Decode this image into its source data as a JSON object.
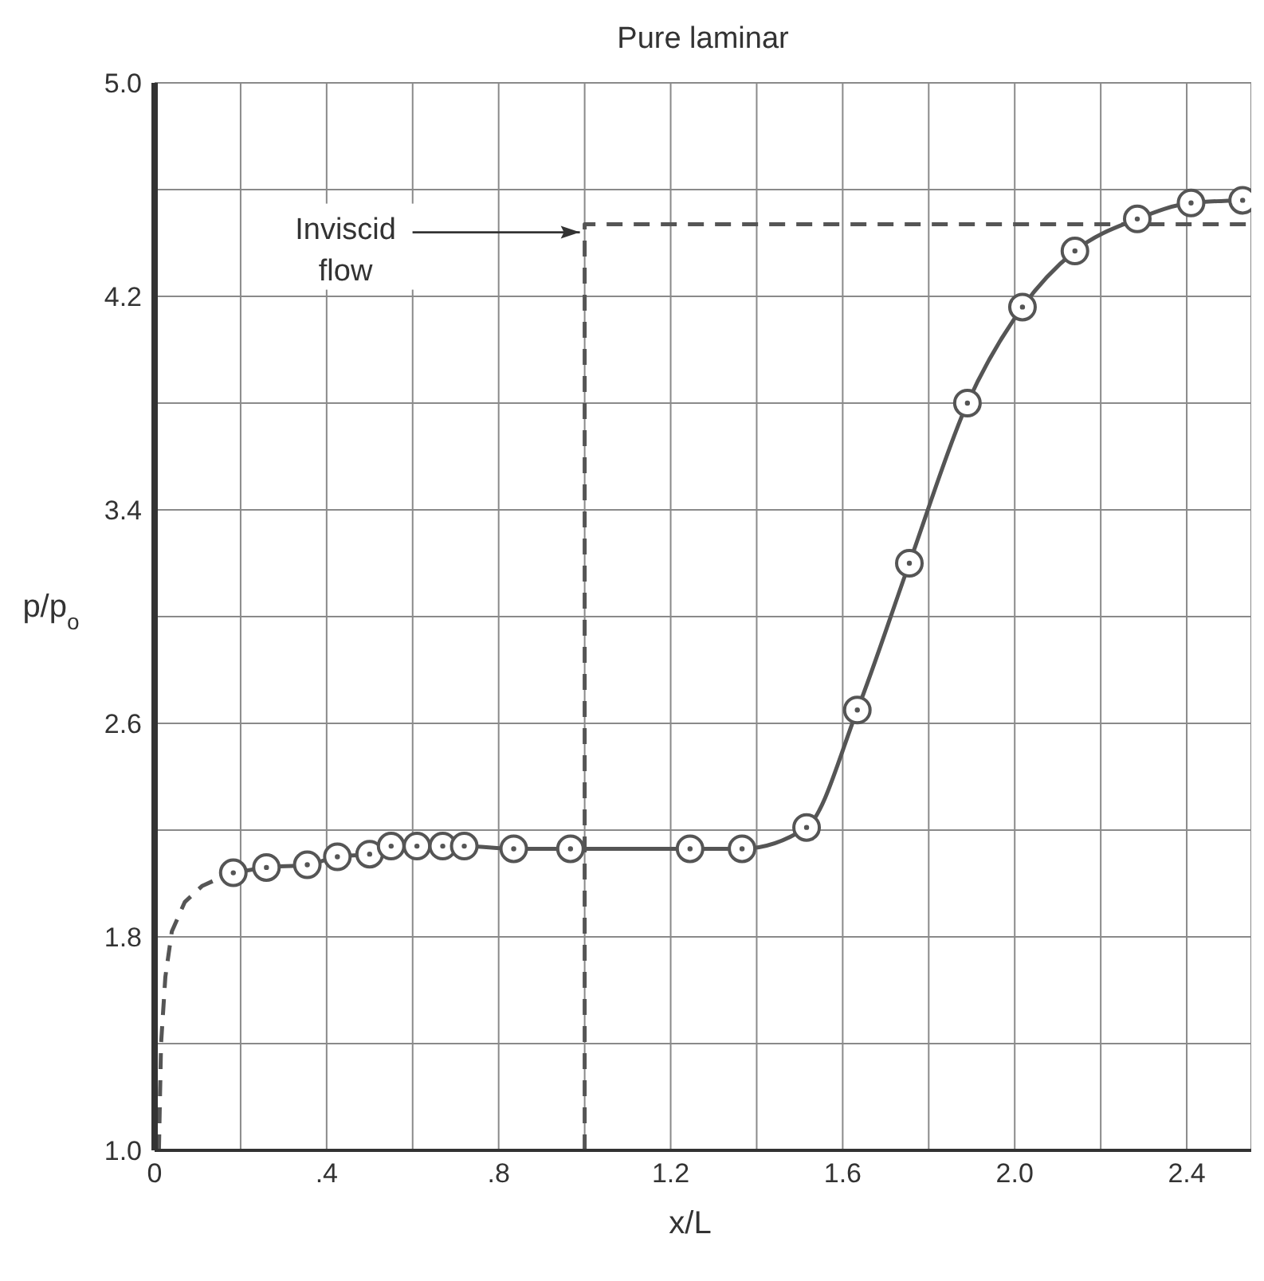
{
  "chart_data": {
    "type": "line",
    "title": "Pure laminar",
    "xlabel": "x/L",
    "ylabel": "p/p$_{o}$",
    "xlim": [
      0,
      2.55
    ],
    "ylim": [
      1.0,
      5.0
    ],
    "xticks": [
      0,
      {
        "value": 0.2,
        "label": null
      },
      {
        "value": 0.4,
        "label": ".4"
      },
      {
        "value": 0.6,
        "label": null
      },
      {
        "value": 0.8,
        "label": ".8"
      },
      {
        "value": 1.0,
        "label": null
      },
      {
        "value": 1.2,
        "label": "1.2"
      },
      {
        "value": 1.4,
        "label": null
      },
      {
        "value": 1.6,
        "label": "1.6"
      },
      {
        "value": 1.8,
        "label": null
      },
      {
        "value": 2.0,
        "label": "2.0"
      },
      {
        "value": 2.2,
        "label": null
      },
      {
        "value": 2.4,
        "label": "2.4"
      }
    ],
    "yticks": [
      {
        "value": 1.0,
        "label": "1.0"
      },
      {
        "value": 1.4,
        "label": null
      },
      1.8,
      {
        "value": 2.2,
        "label": null
      },
      2.6,
      {
        "value": 3.0,
        "label": null
      },
      3.4,
      {
        "value": 3.8,
        "label": null
      },
      4.2,
      {
        "value": 4.6,
        "label": null
      },
      {
        "value": 5.0,
        "label": "5.0"
      }
    ],
    "grid": true,
    "annotations": [
      {
        "text": "Inviscid flow",
        "x": 1.0,
        "y": 4.44
      }
    ],
    "series": [
      {
        "color": "#555555",
        "marker": "circle",
        "line_style": "solid",
        "x": [
          0.183,
          0.26,
          0.355,
          0.425,
          0.5,
          0.55,
          0.61,
          0.67,
          0.72,
          0.835,
          0.967,
          1.245,
          1.366,
          1.516,
          1.634,
          1.755,
          1.89,
          2.018,
          2.14,
          2.285,
          2.41,
          2.53
        ],
        "values": [
          2.04,
          2.06,
          2.07,
          2.1,
          2.11,
          2.14,
          2.14,
          2.14,
          2.14,
          2.13,
          2.13,
          2.13,
          2.13,
          2.21,
          2.65,
          3.2,
          3.8,
          4.16,
          4.37,
          4.49,
          4.55,
          4.56
        ]
      },
      {
        "color": "#555555",
        "marker": "none",
        "line_style": "dashed",
        "x": [
          0.01,
          0.015,
          0.025,
          0.04,
          0.07,
          0.11,
          0.15,
          0.183
        ],
        "values": [
          1.0,
          1.4,
          1.65,
          1.82,
          1.93,
          1.99,
          2.02,
          2.04
        ]
      },
      {
        "color": "#555555",
        "marker": "none",
        "line_style": "dashed",
        "x": [
          1.0,
          1.0,
          2.55
        ],
        "values": [
          1.0,
          4.47,
          4.47
        ]
      }
    ]
  }
}
